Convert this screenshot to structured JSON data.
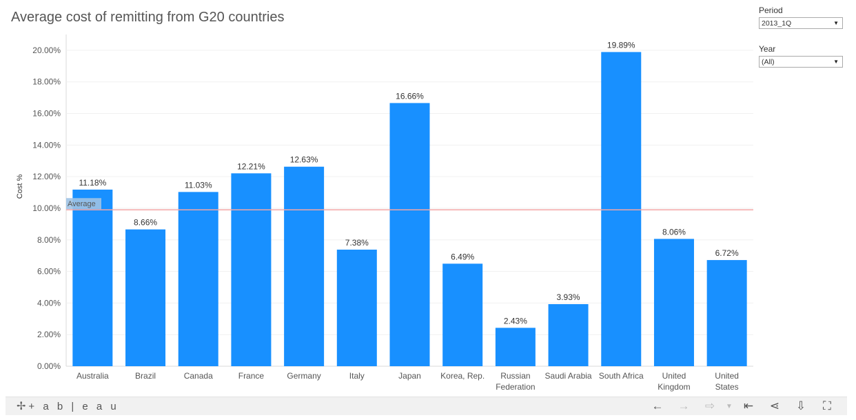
{
  "title": "Average cost of remitting from G20 countries",
  "filters": [
    {
      "label": "Period",
      "value": "2013_1Q"
    },
    {
      "label": "Year",
      "value": "(All)"
    }
  ],
  "chart_data": {
    "type": "bar",
    "title": "Average cost of remitting from G20 countries",
    "ylabel": "Cost %",
    "xlabel": "",
    "ylim": [
      0,
      21.0
    ],
    "yticks": [
      "0.00%",
      "2.00%",
      "4.00%",
      "6.00%",
      "8.00%",
      "10.00%",
      "12.00%",
      "14.00%",
      "16.00%",
      "18.00%",
      "20.00%"
    ],
    "categories": [
      [
        "Australia"
      ],
      [
        "Brazil"
      ],
      [
        "Canada"
      ],
      [
        "France"
      ],
      [
        "Germany"
      ],
      [
        "Italy"
      ],
      [
        "Japan"
      ],
      [
        "Korea, Rep."
      ],
      [
        "Russian",
        "Federation"
      ],
      [
        "Saudi Arabia"
      ],
      [
        "South Africa"
      ],
      [
        "United",
        "Kingdom"
      ],
      [
        "United",
        "States"
      ]
    ],
    "values": [
      11.18,
      8.66,
      11.03,
      12.21,
      12.63,
      7.38,
      16.66,
      6.49,
      2.43,
      3.93,
      19.89,
      8.06,
      6.72
    ],
    "value_labels": [
      "11.18%",
      "8.66%",
      "11.03%",
      "12.21%",
      "12.63%",
      "7.38%",
      "16.66%",
      "6.49%",
      "2.43%",
      "3.93%",
      "19.89%",
      "8.06%",
      "6.72%"
    ],
    "reference_line": {
      "label": "Average",
      "value": 9.9,
      "color": "#f4a6a6"
    },
    "bar_color": "#1890ff",
    "grid": true
  },
  "toolbar": {
    "brand": "+ a b | e a u",
    "icons": [
      "undo-icon",
      "redo-icon",
      "revert-icon",
      "dropdown-icon",
      "reset-icon",
      "share-icon",
      "download-icon",
      "fullscreen-icon"
    ]
  }
}
